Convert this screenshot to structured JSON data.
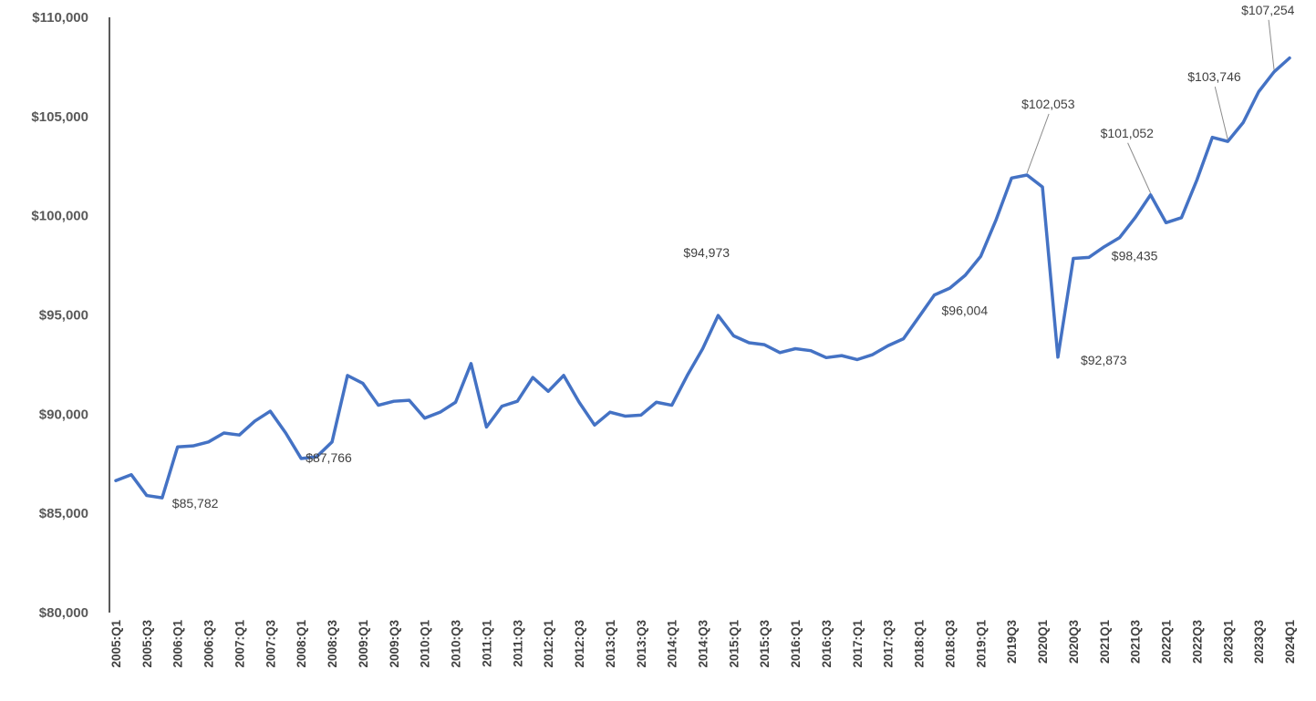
{
  "colors": {
    "line": "#4472C4",
    "axis": "#000000"
  },
  "chart_data": {
    "type": "line",
    "title": "",
    "xlabel": "",
    "ylabel": "",
    "ylim": [
      80000,
      110000
    ],
    "yticks": [
      80000,
      85000,
      90000,
      95000,
      100000,
      105000,
      110000
    ],
    "ytick_labels": [
      "$80,000",
      "$85,000",
      "$90,000",
      "$95,000",
      "$100,000",
      "$105,000",
      "$110,000"
    ],
    "grid": false,
    "legend": "none",
    "x": [
      "2005:Q1",
      "2005:Q2",
      "2005:Q3",
      "2005:Q4",
      "2006:Q1",
      "2006:Q2",
      "2006:Q3",
      "2006:Q4",
      "2007:Q1",
      "2007:Q2",
      "2007:Q3",
      "2007:Q4",
      "2008:Q1",
      "2008:Q2",
      "2008:Q3",
      "2008:Q4",
      "2009:Q1",
      "2009:Q2",
      "2009:Q3",
      "2009:Q4",
      "2010:Q1",
      "2010:Q2",
      "2010:Q3",
      "2010:Q4",
      "2011:Q1",
      "2011:Q2",
      "2011:Q3",
      "2011:Q4",
      "2012:Q1",
      "2012:Q2",
      "2012:Q3",
      "2012:Q4",
      "2013:Q1",
      "2013:Q2",
      "2013:Q3",
      "2013:Q4",
      "2014:Q1",
      "2014:Q2",
      "2014:Q3",
      "2014:Q4",
      "2015:Q1",
      "2015:Q2",
      "2015:Q3",
      "2015:Q4",
      "2016:Q1",
      "2016:Q2",
      "2016:Q3",
      "2016:Q4",
      "2017:Q1",
      "2017:Q2",
      "2017:Q3",
      "2017:Q4",
      "2018:Q1",
      "2018:Q2",
      "2018:Q3",
      "2018:Q4",
      "2019:Q1",
      "2019:Q2",
      "2019Q3",
      "2019Q4",
      "2020Q1",
      "2020Q2",
      "2020Q3",
      "2020Q4",
      "2021Q1",
      "2021Q2",
      "2021Q3",
      "2021Q4",
      "2022Q1",
      "2022Q2",
      "2022Q3",
      "2022Q4",
      "2023Q1",
      "2023Q2",
      "2023Q3",
      "2023Q4",
      "2024Q1"
    ],
    "tick_labels": [
      "2005:Q1",
      "2005:Q3",
      "2006:Q1",
      "2006:Q3",
      "2007:Q1",
      "2007:Q3",
      "2008:Q1",
      "2008:Q3",
      "2009:Q1",
      "2009:Q3",
      "2010:Q1",
      "2010:Q3",
      "2011:Q1",
      "2011:Q3",
      "2012:Q1",
      "2012:Q3",
      "2013:Q1",
      "2013:Q3",
      "2014:Q1",
      "2014:Q3",
      "2015:Q1",
      "2015:Q3",
      "2016:Q1",
      "2016:Q3",
      "2017:Q1",
      "2017:Q3",
      "2018:Q1",
      "2018:Q3",
      "2019:Q1",
      "2019Q3",
      "2020Q1",
      "2020Q3",
      "2021Q1",
      "2021Q3",
      "2022Q1",
      "2022Q3",
      "2023Q1",
      "2023Q3",
      "2024Q1"
    ],
    "series": [
      {
        "values": [
          86650,
          86950,
          85900,
          85782,
          88350,
          88400,
          88600,
          89050,
          88950,
          89650,
          90150,
          89050,
          87766,
          87850,
          88600,
          91950,
          91550,
          90450,
          90650,
          90700,
          89800,
          90100,
          90600,
          92550,
          89350,
          90400,
          90650,
          91850,
          91150,
          91950,
          90600,
          89450,
          90100,
          89900,
          89950,
          90600,
          90450,
          91950,
          93300,
          94973,
          93950,
          93600,
          93500,
          93100,
          93300,
          93200,
          92850,
          92950,
          92750,
          93000,
          93450,
          93800,
          94900,
          96004,
          96350,
          97000,
          97950,
          99800,
          101900,
          102053,
          101450,
          92873,
          97850,
          97900,
          98435,
          98900,
          99900,
          101052,
          99650,
          99900,
          101800,
          103950,
          103746,
          104700,
          106250,
          107254,
          107950
        ]
      }
    ],
    "annotations": [
      {
        "text": "$85,782",
        "index": 3
      },
      {
        "text": "$87,766",
        "index": 12
      },
      {
        "text": "$94,973",
        "index": 39
      },
      {
        "text": "$96,004",
        "index": 53
      },
      {
        "text": "$102,053",
        "index": 59
      },
      {
        "text": "$92,873",
        "index": 61
      },
      {
        "text": "$98,435",
        "index": 64
      },
      {
        "text": "$101,052",
        "index": 67
      },
      {
        "text": "$103,746",
        "index": 72
      },
      {
        "text": "$107,254",
        "index": 75
      }
    ]
  }
}
